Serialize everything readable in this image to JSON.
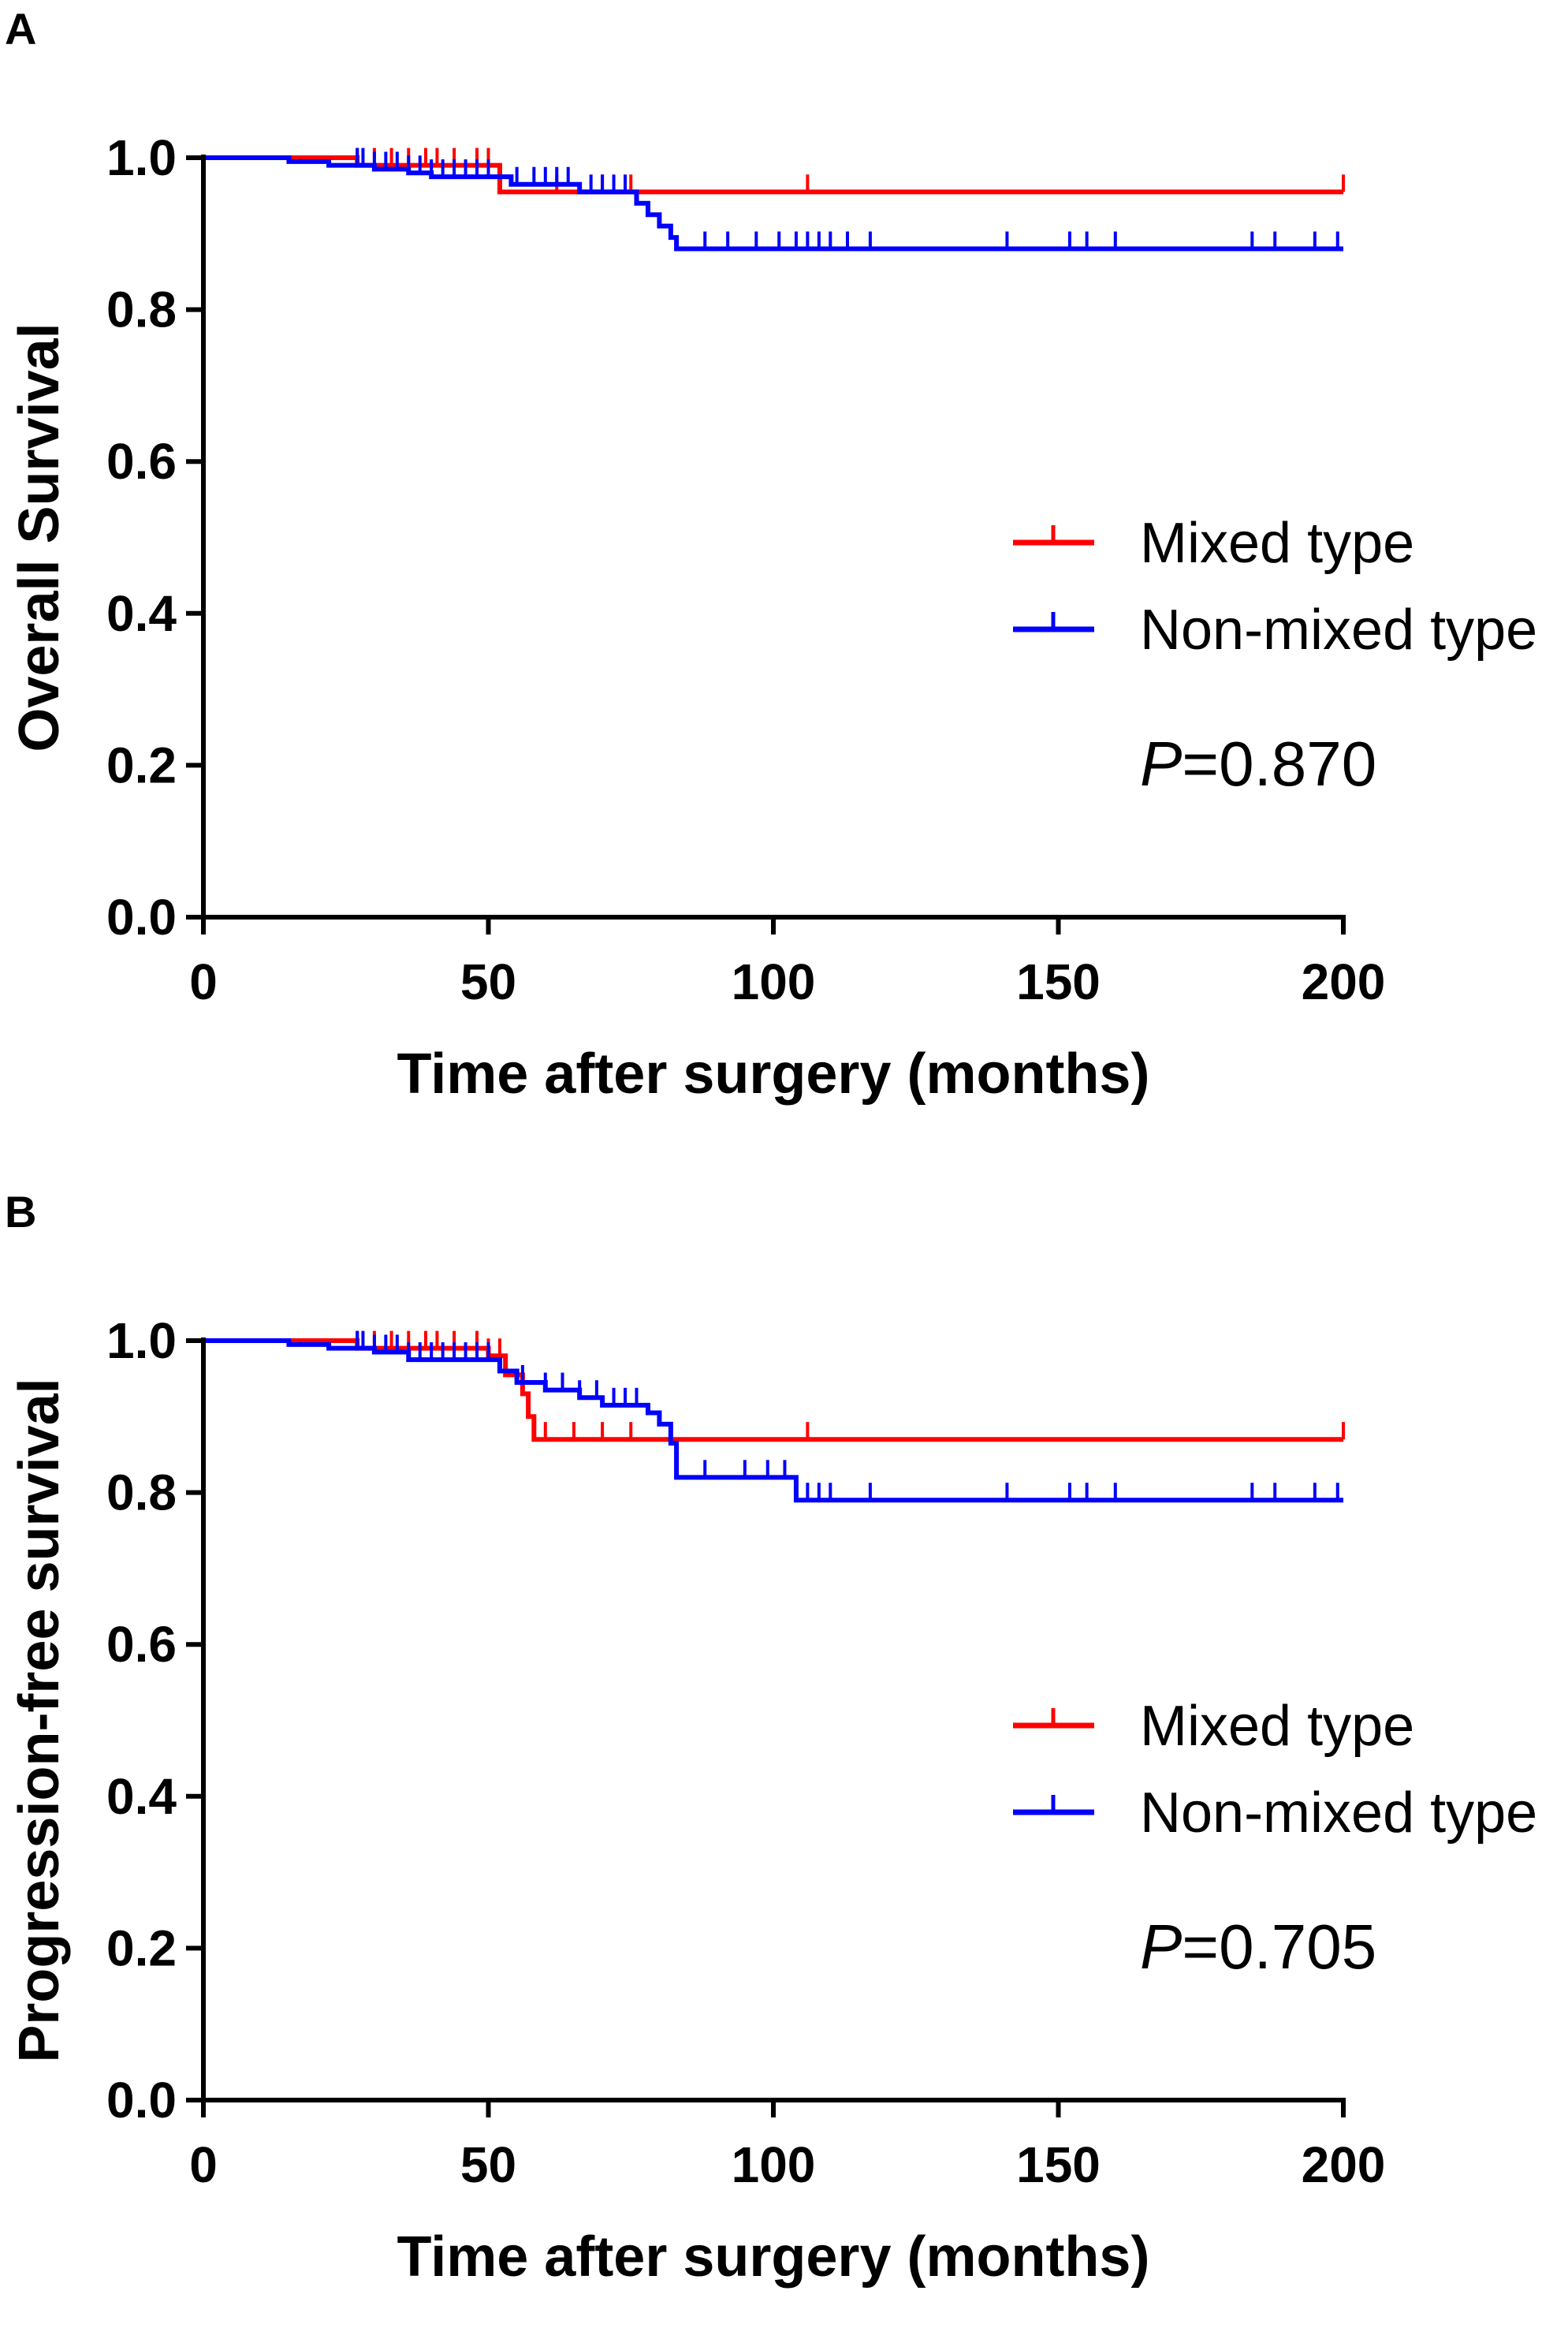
{
  "chart_data": [
    {
      "type": "line",
      "subtype": "kaplan-meier",
      "panel_label": "A",
      "title": "",
      "xlabel": "Time after surgery (months)",
      "ylabel": "Overall Survival",
      "xlim": [
        0,
        200
      ],
      "ylim": [
        0,
        1.0
      ],
      "x_ticks": [
        "0",
        "50",
        "100",
        "150",
        "200"
      ],
      "y_ticks": [
        "0.0",
        "0.2",
        "0.4",
        "0.6",
        "0.8",
        "1.0"
      ],
      "legend_position": "right-middle",
      "annotation": {
        "italic": "P",
        "rest": "=0.870"
      },
      "series": [
        {
          "name": "Mixed type",
          "color": "#ff0000",
          "steps": [
            [
              0,
              1.0
            ],
            [
              27,
              0.99
            ],
            [
              52,
              0.955
            ],
            [
              200,
              0.955
            ]
          ],
          "censor": [
            27,
            30,
            33,
            36,
            39,
            41,
            44,
            48,
            50,
            52,
            62,
            70,
            75,
            106,
            200
          ]
        },
        {
          "name": "Non-mixed type",
          "color": "#0000ff",
          "steps": [
            [
              0,
              1.0
            ],
            [
              15,
              0.995
            ],
            [
              22,
              0.99
            ],
            [
              30,
              0.985
            ],
            [
              36,
              0.98
            ],
            [
              40,
              0.975
            ],
            [
              54,
              0.965
            ],
            [
              66,
              0.955
            ],
            [
              76,
              0.94
            ],
            [
              78,
              0.925
            ],
            [
              80,
              0.91
            ],
            [
              82,
              0.895
            ],
            [
              83,
              0.88
            ],
            [
              200,
              0.88
            ]
          ],
          "censor": [
            27,
            28,
            30,
            32,
            34,
            36,
            38,
            40,
            42,
            44,
            46,
            48,
            50,
            55,
            58,
            60,
            62,
            64,
            68,
            70,
            72,
            74,
            88,
            92,
            97,
            101,
            104,
            106,
            108,
            110,
            113,
            117,
            141,
            152,
            155,
            160,
            184,
            188,
            195,
            199
          ]
        }
      ]
    },
    {
      "type": "line",
      "subtype": "kaplan-meier",
      "panel_label": "B",
      "title": "",
      "xlabel": "Time after surgery (months)",
      "ylabel": "Progression-free survival",
      "xlim": [
        0,
        200
      ],
      "ylim": [
        0,
        1.0
      ],
      "x_ticks": [
        "0",
        "50",
        "100",
        "150",
        "200"
      ],
      "y_ticks": [
        "0.0",
        "0.2",
        "0.4",
        "0.6",
        "0.8",
        "1.0"
      ],
      "legend_position": "right-middle",
      "annotation": {
        "italic": "P",
        "rest": "=0.705"
      },
      "series": [
        {
          "name": "Mixed type",
          "color": "#ff0000",
          "steps": [
            [
              0,
              1.0
            ],
            [
              27,
              0.99
            ],
            [
              50,
              0.98
            ],
            [
              53,
              0.955
            ],
            [
              56,
              0.93
            ],
            [
              57,
              0.9
            ],
            [
              58,
              0.87
            ],
            [
              200,
              0.87
            ]
          ],
          "censor": [
            27,
            30,
            33,
            36,
            39,
            41,
            44,
            48,
            50,
            52,
            60,
            65,
            70,
            75,
            106,
            200
          ]
        },
        {
          "name": "Non-mixed type",
          "color": "#0000ff",
          "steps": [
            [
              0,
              1.0
            ],
            [
              15,
              0.995
            ],
            [
              22,
              0.99
            ],
            [
              30,
              0.985
            ],
            [
              36,
              0.975
            ],
            [
              52,
              0.96
            ],
            [
              55,
              0.945
            ],
            [
              60,
              0.935
            ],
            [
              66,
              0.925
            ],
            [
              70,
              0.915
            ],
            [
              78,
              0.905
            ],
            [
              80,
              0.89
            ],
            [
              82,
              0.865
            ],
            [
              83,
              0.82
            ],
            [
              100,
              0.82
            ],
            [
              104,
              0.79
            ],
            [
              200,
              0.79
            ]
          ],
          "censor": [
            27,
            28,
            30,
            32,
            34,
            36,
            38,
            40,
            42,
            44,
            46,
            48,
            50,
            56,
            60,
            63,
            66,
            69,
            72,
            74,
            76,
            88,
            95,
            99,
            102,
            106,
            108,
            110,
            117,
            141,
            152,
            155,
            160,
            184,
            188,
            195,
            199
          ]
        }
      ]
    }
  ]
}
